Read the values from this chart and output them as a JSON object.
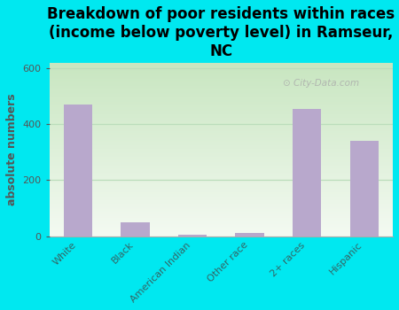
{
  "categories": [
    "White",
    "Black",
    "American Indian",
    "Other race",
    "2+ races",
    "Hispanic"
  ],
  "values": [
    470,
    50,
    5,
    12,
    455,
    340
  ],
  "bar_color": "#b8a8cc",
  "title": "Breakdown of poor residents within races\n(income below poverty level) in Ramseur,\nNC",
  "ylabel": "absolute numbers",
  "ylim": [
    0,
    620
  ],
  "yticks": [
    0,
    200,
    400,
    600
  ],
  "background_color": "#00e8f0",
  "plot_bg_top": "#c8e6c0",
  "plot_bg_bottom": "#f4faf2",
  "watermark": "City-Data.com",
  "title_fontsize": 12,
  "ylabel_fontsize": 9,
  "tick_fontsize": 8,
  "ylabel_color": "#555555",
  "tick_color": "#336666",
  "grid_color": "#bbddbb"
}
